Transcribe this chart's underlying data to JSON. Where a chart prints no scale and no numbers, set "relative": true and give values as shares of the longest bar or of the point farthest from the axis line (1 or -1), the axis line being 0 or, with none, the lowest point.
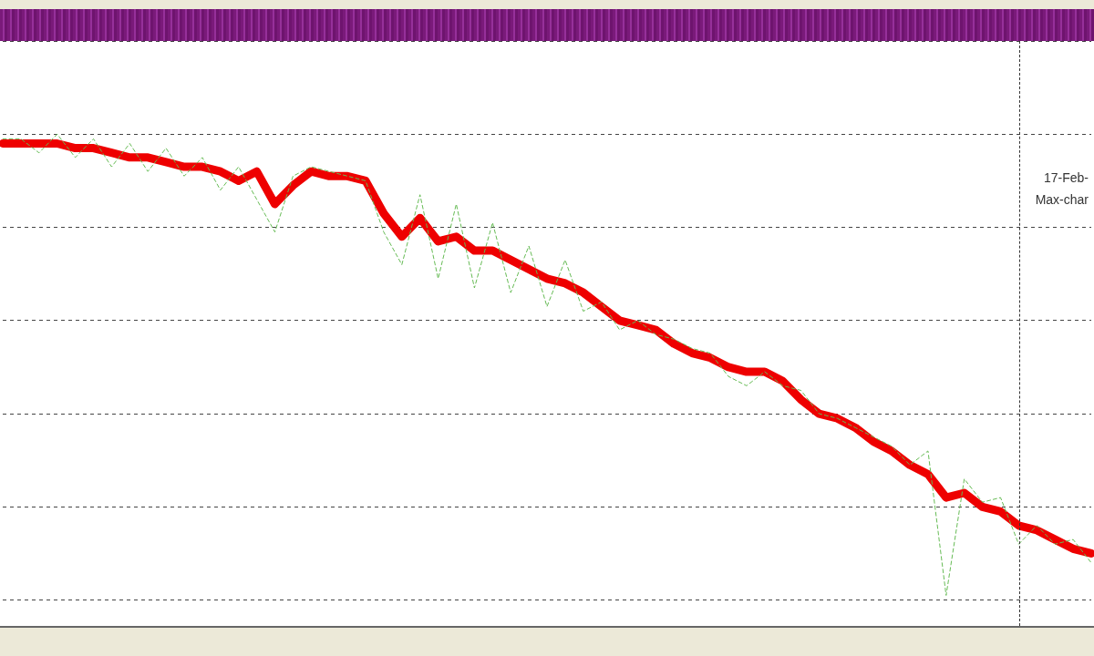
{
  "chart_data": {
    "type": "line",
    "relative": true,
    "grid": "y",
    "legend": false,
    "categories": [
      null,
      null,
      null,
      null,
      null,
      null,
      null,
      null,
      null,
      null,
      null,
      null,
      null,
      null,
      null,
      null,
      null,
      null,
      null,
      null,
      null,
      null,
      null,
      null,
      null,
      null,
      null,
      null,
      null,
      null,
      null,
      null,
      null,
      null,
      null,
      null,
      null,
      null,
      null,
      null,
      null,
      null,
      null,
      null,
      null,
      null,
      null,
      null,
      null,
      null,
      null,
      null,
      null,
      null,
      null,
      null,
      null,
      null,
      null,
      null,
      null
    ],
    "series": [
      {
        "color": "#66bb55",
        "line_style": "dashed",
        "marker": "none",
        "values": [
          0.99,
          0.99,
          0.96,
          1,
          0.95,
          0.99,
          0.93,
          0.98,
          0.92,
          0.97,
          0.91,
          0.95,
          0.88,
          0.93,
          0.86,
          0.79,
          0.91,
          0.93,
          0.92,
          0.91,
          0.9,
          0.79,
          0.72,
          0.87,
          0.69,
          0.85,
          0.67,
          0.81,
          0.66,
          0.76,
          0.63,
          0.73,
          0.62,
          0.64,
          0.58,
          0.6,
          0.57,
          0.56,
          0.54,
          0.53,
          0.48,
          0.46,
          0.49,
          0.46,
          0.45,
          0.4,
          0.39,
          0.37,
          0.35,
          0.33,
          0.29,
          0.32,
          0.01,
          0.26,
          0.21,
          0.22,
          0.12,
          0.16,
          0.12,
          0.13,
          0.08
        ]
      },
      {
        "color": "#ee0000",
        "line_style": "solid",
        "marker": "none",
        "values": [
          0.98,
          0.98,
          0.98,
          0.98,
          0.97,
          0.97,
          0.96,
          0.95,
          0.95,
          0.94,
          0.93,
          0.93,
          0.92,
          0.9,
          0.92,
          0.85,
          0.89,
          0.92,
          0.91,
          0.91,
          0.9,
          0.83,
          0.78,
          0.82,
          0.77,
          0.78,
          0.75,
          0.75,
          0.73,
          0.71,
          0.69,
          0.68,
          0.66,
          0.63,
          0.6,
          0.59,
          0.58,
          0.55,
          0.53,
          0.52,
          0.5,
          0.49,
          0.49,
          0.47,
          0.43,
          0.4,
          0.39,
          0.37,
          0.34,
          0.32,
          0.29,
          0.27,
          0.22,
          0.23,
          0.2,
          0.19,
          0.16,
          0.15,
          0.13,
          0.11,
          0.1
        ]
      }
    ],
    "annotations": [
      "17-Feb-",
      "Max-char"
    ]
  }
}
